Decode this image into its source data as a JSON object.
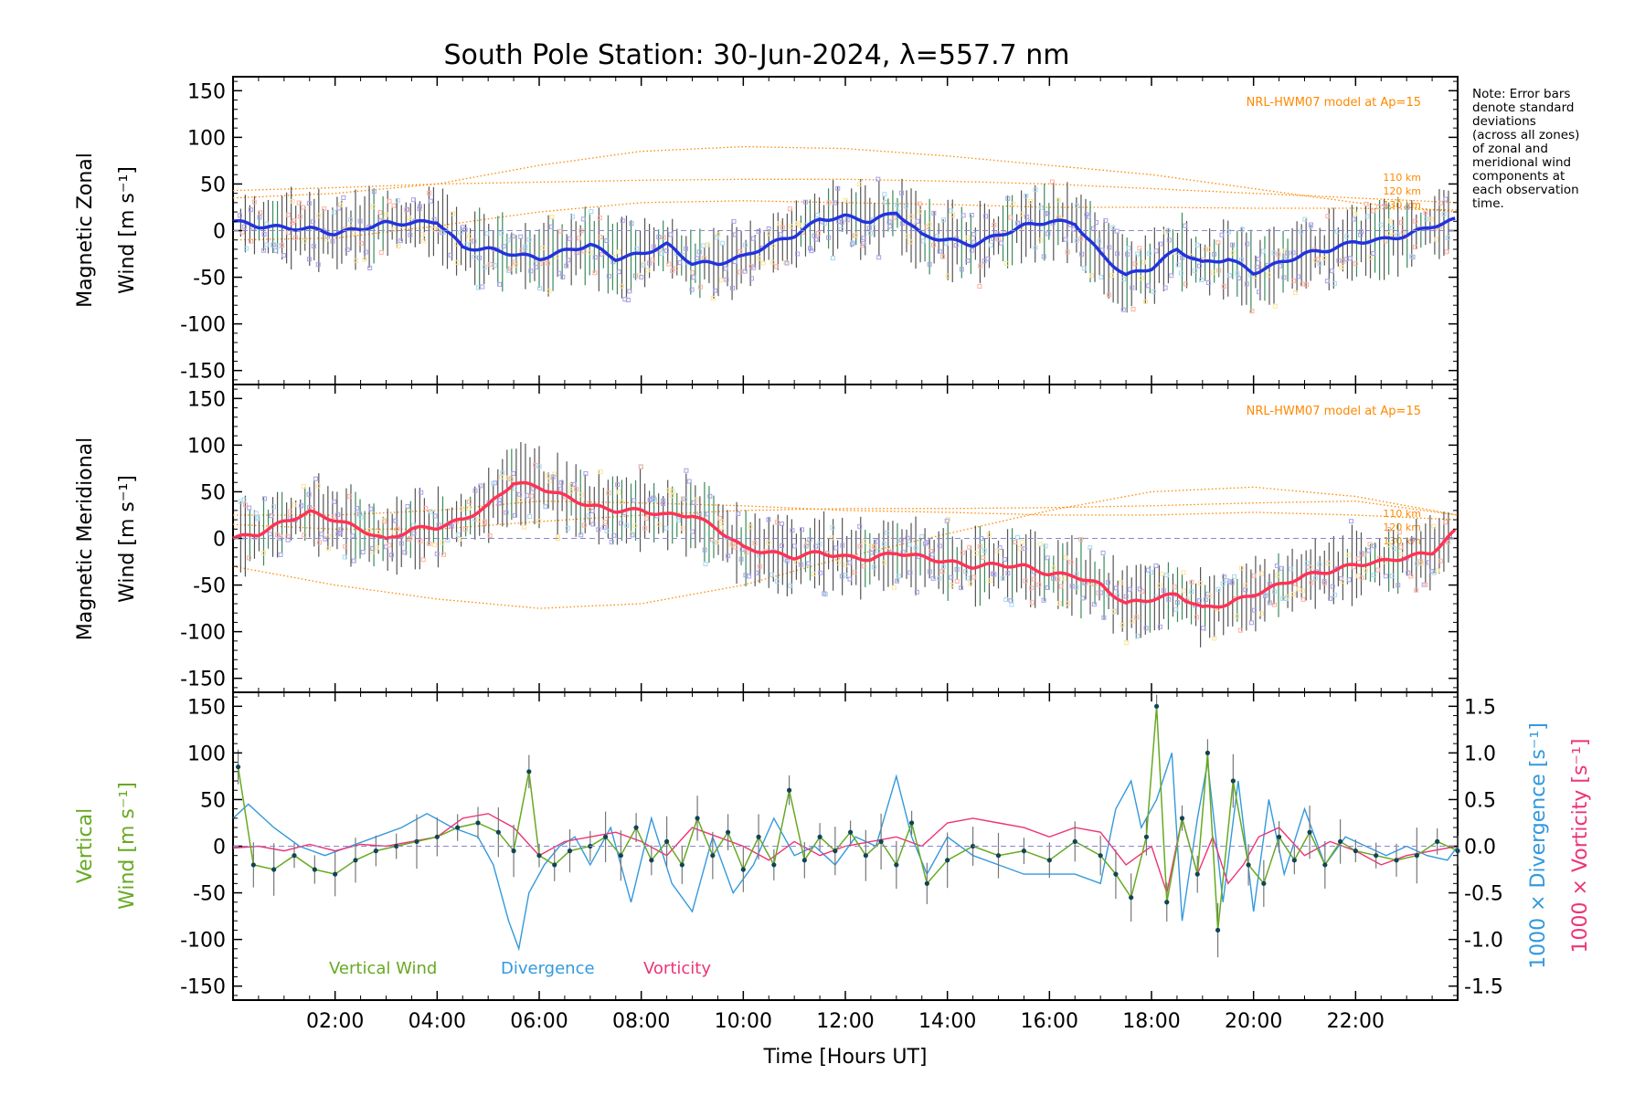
{
  "colors": {
    "zonal_line": "#2233dd",
    "meridional_line": "#ff3355",
    "model": "#ff8800",
    "samples": "#a9a0e8",
    "vertical": "#66aa22",
    "divergence": "#3399dd",
    "vorticity": "#ee3377",
    "errbar": "#555555"
  },
  "chart_data": [
    {
      "type": "line",
      "panel": "zonal",
      "title": "South Pole Station: 30-Jun-2024, λ=557.7 nm",
      "ylabel_line1": "Magnetic Zonal",
      "ylabel_line2": "Wind [m s⁻¹]",
      "ylim": [
        -165,
        165
      ],
      "yticks": [
        -150,
        -100,
        -50,
        0,
        50,
        100,
        150
      ],
      "xlim": [
        0,
        24
      ],
      "model_label": "NRL-HWM07 model at Ap=15",
      "model_altitudes": [
        "110 km",
        "120 km",
        "130 km"
      ],
      "series": [
        {
          "name": "Zonal wind",
          "x": [
            0,
            0.5,
            1,
            1.5,
            2,
            2.5,
            3,
            3.5,
            4,
            4.5,
            5,
            5.5,
            6,
            6.5,
            7,
            7.5,
            8,
            8.5,
            9,
            9.5,
            10,
            10.5,
            11,
            11.5,
            12,
            12.5,
            13,
            13.5,
            14,
            14.5,
            15,
            15.5,
            16,
            16.5,
            17,
            17.5,
            18,
            18.5,
            19,
            19.5,
            20,
            20.5,
            21,
            21.5,
            22,
            22.5,
            23,
            23.5,
            24
          ],
          "values": [
            10,
            5,
            3,
            2,
            -3,
            2,
            8,
            8,
            10,
            -18,
            -20,
            -25,
            -30,
            -22,
            -15,
            -30,
            -25,
            -15,
            -35,
            -35,
            -28,
            -15,
            -5,
            12,
            15,
            10,
            20,
            -5,
            -10,
            -15,
            -5,
            5,
            10,
            8,
            -25,
            -48,
            -40,
            -20,
            -35,
            -30,
            -45,
            -35,
            -25,
            -20,
            -12,
            -10,
            -5,
            5,
            12
          ]
        },
        {
          "name": "110 km",
          "x": [
            0,
            2,
            4,
            6,
            8,
            10,
            12,
            14,
            16,
            18,
            20,
            22,
            24
          ],
          "values": [
            35,
            40,
            50,
            70,
            85,
            90,
            88,
            80,
            70,
            60,
            45,
            30,
            20
          ]
        },
        {
          "name": "120 km",
          "x": [
            0,
            2,
            4,
            6,
            8,
            10,
            12,
            14,
            16,
            18,
            20,
            22,
            24
          ],
          "values": [
            43,
            46,
            50,
            52,
            54,
            55,
            55,
            53,
            50,
            45,
            40,
            35,
            30
          ]
        },
        {
          "name": "130 km",
          "x": [
            0,
            2,
            4,
            6,
            8,
            10,
            12,
            14,
            16,
            18,
            20,
            22,
            24
          ],
          "values": [
            -10,
            -8,
            5,
            20,
            30,
            32,
            30,
            28,
            25,
            25,
            24,
            24,
            22
          ]
        }
      ]
    },
    {
      "type": "line",
      "panel": "meridional",
      "ylabel_line1": "Magnetic Meridional",
      "ylabel_line2": "Wind [m s⁻¹]",
      "ylim": [
        -165,
        165
      ],
      "yticks": [
        -150,
        -100,
        -50,
        0,
        50,
        100,
        150
      ],
      "xlim": [
        0,
        24
      ],
      "model_label": "NRL-HWM07 model at Ap=15",
      "model_altitudes": [
        "110 km",
        "120 km",
        "130 km"
      ],
      "series": [
        {
          "name": "Meridional wind",
          "x": [
            0,
            0.5,
            1,
            1.5,
            2,
            2.5,
            3,
            3.5,
            4,
            4.5,
            5,
            5.5,
            6,
            6.5,
            7,
            7.5,
            8,
            8.5,
            9,
            9.5,
            10,
            10.5,
            11,
            11.5,
            12,
            12.5,
            13,
            13.5,
            14,
            14.5,
            15,
            15.5,
            16,
            16.5,
            17,
            17.5,
            18,
            18.5,
            19,
            19.5,
            20,
            20.5,
            21,
            21.5,
            22,
            22.5,
            23,
            23.5,
            24
          ],
          "values": [
            0,
            5,
            18,
            28,
            20,
            10,
            -2,
            10,
            12,
            20,
            35,
            60,
            55,
            45,
            35,
            30,
            30,
            25,
            25,
            10,
            -10,
            -15,
            -20,
            -15,
            -20,
            -22,
            -15,
            -20,
            -25,
            -30,
            -28,
            -30,
            -38,
            -40,
            -50,
            -70,
            -65,
            -60,
            -75,
            -70,
            -60,
            -50,
            -40,
            -35,
            -28,
            -25,
            -20,
            -15,
            10
          ]
        },
        {
          "name": "110 km",
          "x": [
            0,
            2,
            4,
            6,
            8,
            10,
            12,
            14,
            16,
            18,
            20,
            22,
            24
          ],
          "values": [
            -30,
            -50,
            -65,
            -75,
            -70,
            -50,
            -20,
            5,
            30,
            50,
            55,
            45,
            25
          ]
        },
        {
          "name": "120 km",
          "x": [
            0,
            2,
            4,
            6,
            8,
            10,
            12,
            14,
            16,
            18,
            20,
            22,
            24
          ],
          "values": [
            15,
            10,
            10,
            18,
            25,
            30,
            32,
            32,
            33,
            35,
            38,
            40,
            25
          ]
        },
        {
          "name": "130 km",
          "x": [
            0,
            2,
            4,
            6,
            8,
            10,
            12,
            14,
            16,
            18,
            20,
            22,
            24
          ],
          "values": [
            25,
            25,
            30,
            40,
            38,
            35,
            30,
            28,
            25,
            25,
            28,
            25,
            20
          ]
        }
      ]
    },
    {
      "type": "line",
      "panel": "vertical",
      "ylabel_line1": "Vertical",
      "ylabel_line2": "Wind [m s⁻¹]",
      "y2label_div": "1000 × Divergence [s⁻¹]",
      "y2label_vort": "1000 × Vorticity [s⁻¹]",
      "ylim": [
        -165,
        165
      ],
      "yticks": [
        -150,
        -100,
        -50,
        0,
        50,
        100,
        150
      ],
      "y2lim": [
        -1.65,
        1.65
      ],
      "y2ticks": [
        -1.5,
        -1.0,
        -0.5,
        0.0,
        0.5,
        1.0,
        1.5
      ],
      "xlim": [
        0,
        24
      ],
      "xlabel": "Time [Hours UT]",
      "xticks": [
        2,
        4,
        6,
        8,
        10,
        12,
        14,
        16,
        18,
        20,
        22
      ],
      "xtick_labels": [
        "02:00",
        "04:00",
        "06:00",
        "08:00",
        "10:00",
        "12:00",
        "14:00",
        "16:00",
        "18:00",
        "20:00",
        "22:00"
      ],
      "legend": [
        "Vertical Wind",
        "Divergence",
        "Vorticity"
      ],
      "series": [
        {
          "name": "Vertical Wind",
          "x": [
            0.1,
            0.4,
            0.8,
            1.2,
            1.6,
            2.0,
            2.4,
            2.8,
            3.2,
            3.6,
            4.0,
            4.4,
            4.8,
            5.2,
            5.5,
            5.8,
            6.0,
            6.3,
            6.6,
            7.0,
            7.3,
            7.6,
            7.9,
            8.2,
            8.5,
            8.8,
            9.1,
            9.4,
            9.7,
            10.0,
            10.3,
            10.6,
            10.9,
            11.2,
            11.5,
            11.8,
            12.1,
            12.4,
            12.7,
            13.0,
            13.3,
            13.6,
            14.0,
            14.5,
            15.0,
            15.5,
            16.0,
            16.5,
            17.0,
            17.3,
            17.6,
            17.9,
            18.1,
            18.3,
            18.6,
            18.9,
            19.1,
            19.3,
            19.6,
            19.9,
            20.2,
            20.5,
            20.8,
            21.1,
            21.4,
            21.7,
            22.0,
            22.4,
            22.8,
            23.2,
            23.6,
            24.0
          ],
          "values": [
            85,
            -20,
            -25,
            -10,
            -25,
            -30,
            -15,
            -5,
            0,
            5,
            10,
            20,
            25,
            15,
            -5,
            80,
            -10,
            -20,
            -5,
            0,
            10,
            -10,
            20,
            -15,
            5,
            -20,
            30,
            -10,
            15,
            -25,
            10,
            -20,
            60,
            -15,
            10,
            -5,
            15,
            -10,
            5,
            -20,
            25,
            -40,
            -15,
            0,
            -10,
            -5,
            -15,
            5,
            -10,
            -30,
            -55,
            10,
            150,
            -60,
            30,
            -30,
            100,
            -90,
            70,
            -20,
            -40,
            10,
            -15,
            15,
            -20,
            5,
            -5,
            -10,
            -15,
            -10,
            5,
            -5
          ]
        },
        {
          "name": "Divergence",
          "x": [
            0,
            0.3,
            0.8,
            1.3,
            1.8,
            2.3,
            2.8,
            3.3,
            3.8,
            4.3,
            4.8,
            5.1,
            5.4,
            5.6,
            5.8,
            6.1,
            6.4,
            6.7,
            7.0,
            7.4,
            7.8,
            8.2,
            8.6,
            9.0,
            9.4,
            9.8,
            10.2,
            10.6,
            11.0,
            11.4,
            11.8,
            12.2,
            12.6,
            13.0,
            13.3,
            13.6,
            14.0,
            14.5,
            15.0,
            15.5,
            16.0,
            16.5,
            17.0,
            17.3,
            17.6,
            17.8,
            18.1,
            18.4,
            18.6,
            18.9,
            19.1,
            19.4,
            19.7,
            20.0,
            20.3,
            20.6,
            21.0,
            21.4,
            21.8,
            22.2,
            22.6,
            23.0,
            23.4,
            23.8,
            24.0
          ],
          "values": [
            0.3,
            0.45,
            0.2,
            0.0,
            -0.1,
            0.0,
            0.1,
            0.2,
            0.35,
            0.2,
            0.1,
            -0.2,
            -0.8,
            -1.1,
            -0.5,
            -0.2,
            0.0,
            0.1,
            -0.2,
            0.2,
            -0.6,
            0.3,
            -0.4,
            -0.7,
            0.1,
            -0.5,
            -0.2,
            0.3,
            -0.1,
            0.0,
            -0.2,
            0.1,
            0.0,
            0.75,
            0.1,
            -0.3,
            0.1,
            -0.1,
            -0.2,
            -0.3,
            -0.3,
            -0.3,
            -0.4,
            0.4,
            0.7,
            0.2,
            0.5,
            1.0,
            -0.8,
            0.3,
            0.9,
            -0.6,
            0.7,
            -0.7,
            0.5,
            -0.3,
            0.4,
            -0.2,
            0.1,
            0.0,
            -0.1,
            0.0,
            -0.1,
            -0.15,
            0.0
          ]
        },
        {
          "name": "Vorticity",
          "x": [
            0,
            0.5,
            1,
            1.5,
            2,
            2.5,
            3,
            3.5,
            4,
            4.5,
            5,
            5.5,
            6,
            6.5,
            7,
            7.5,
            8,
            8.5,
            9,
            9.5,
            10,
            10.5,
            11,
            11.5,
            12,
            12.5,
            13,
            13.5,
            14,
            14.5,
            15,
            15.5,
            16,
            16.5,
            17,
            17.5,
            18,
            18.3,
            18.6,
            18.9,
            19.2,
            19.5,
            19.8,
            20.1,
            20.5,
            21,
            21.5,
            22,
            22.5,
            23,
            23.5,
            24
          ],
          "values": [
            -0.02,
            0.0,
            -0.05,
            0.02,
            -0.05,
            0.02,
            0.0,
            0.05,
            0.1,
            0.3,
            0.35,
            0.2,
            -0.1,
            0.05,
            0.1,
            0.15,
            0.05,
            -0.1,
            0.2,
            0.1,
            0.0,
            -0.15,
            0.05,
            -0.1,
            0.0,
            0.05,
            0.1,
            0.0,
            0.25,
            0.3,
            0.25,
            0.2,
            0.1,
            0.2,
            0.15,
            -0.2,
            0.0,
            -0.5,
            0.3,
            -0.3,
            0.1,
            -0.4,
            -0.2,
            0.1,
            0.2,
            -0.1,
            0.05,
            -0.05,
            -0.2,
            -0.1,
            -0.05,
            0.0
          ]
        }
      ]
    }
  ],
  "note_lines": [
    "Note: Error bars",
    "denote standard",
    "deviations",
    "(across all zones)",
    "of zonal and",
    "meridional wind",
    "components at",
    "each observation",
    "time."
  ]
}
